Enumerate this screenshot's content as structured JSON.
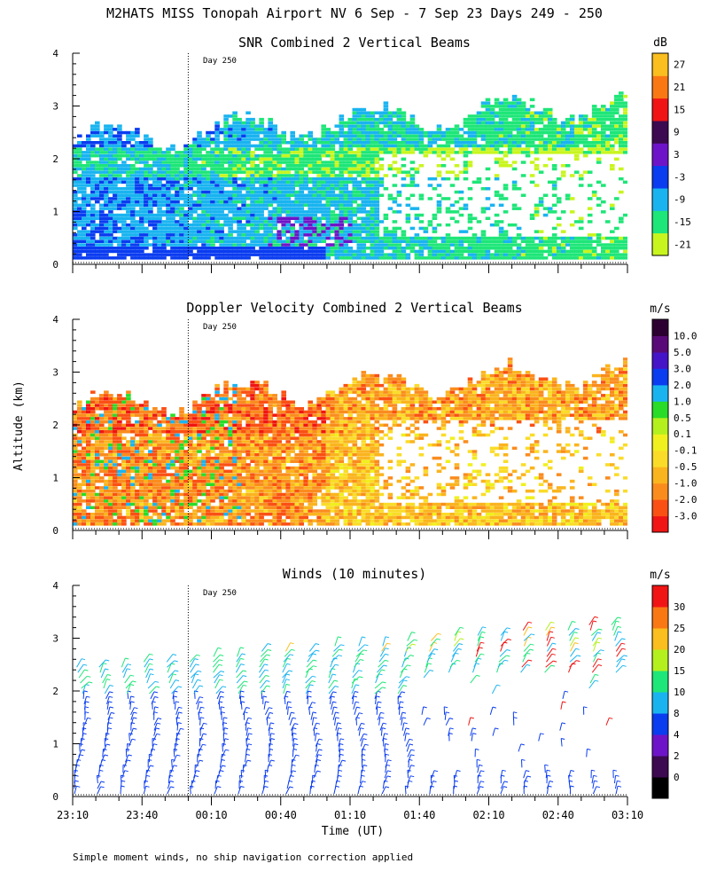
{
  "page": {
    "title": "M2HATS MISS Tonopah Airport NV   6 Sep -  7 Sep 23 Days 249 - 250",
    "y_axis_label": "Altitude (km)",
    "x_axis_label": "Time (UT)",
    "footnote": "Simple moment winds, no ship navigation correction applied",
    "day_marker_label": "Day 250"
  },
  "chart_data": [
    {
      "type": "heatmap",
      "title": "SNR Combined 2 Vertical Beams",
      "colorbar_unit": "dB",
      "colorbar_levels": [
        "-21",
        "-15",
        "-9",
        "-3",
        "3",
        "9",
        "15",
        "21",
        "27"
      ],
      "colorbar_colors": [
        "#c8f51e",
        "#1ee678",
        "#19b4f0",
        "#0a3cf0",
        "#6e14c8",
        "#3c0a50",
        "#f01414",
        "#fa7814",
        "#fabe1e"
      ],
      "x_ticks": [
        "23:10",
        "23:40",
        "00:10",
        "00:40",
        "01:10",
        "01:40",
        "02:10",
        "02:40",
        "03:10"
      ],
      "x_range_hours": [
        23.1667,
        27.1667
      ],
      "ylim": [
        0,
        4
      ],
      "y_ticks": [
        "0",
        "1",
        "2",
        "3",
        "4"
      ],
      "day_boundary_hour": 24.0
    },
    {
      "type": "heatmap",
      "title": "Doppler Velocity Combined 2 Vertical Beams",
      "colorbar_unit": "m/s",
      "colorbar_levels": [
        "-3.0",
        "-2.0",
        "-1.0",
        "-0.5",
        "-0.1",
        "0.1",
        "0.5",
        "1.0",
        "2.0",
        "3.0",
        "5.0",
        "10.0"
      ],
      "colorbar_colors": [
        "#f01414",
        "#fa5014",
        "#fa8c1e",
        "#fab41e",
        "#fadc28",
        "#f0f01e",
        "#b4f01e",
        "#28dc28",
        "#19b4f0",
        "#0a3cf0",
        "#4614c8",
        "#5a0a78",
        "#2d0032"
      ],
      "x_ticks": [
        "23:10",
        "23:40",
        "00:10",
        "00:40",
        "01:10",
        "01:40",
        "02:10",
        "02:40",
        "03:10"
      ],
      "x_range_hours": [
        23.1667,
        27.1667
      ],
      "ylim": [
        0,
        4
      ],
      "y_ticks": [
        "0",
        "1",
        "2",
        "3",
        "4"
      ],
      "day_boundary_hour": 24.0
    },
    {
      "type": "scatter",
      "title": "Winds (10 minutes)",
      "colorbar_unit": "m/s",
      "colorbar_levels": [
        "0",
        "2",
        "4",
        "8",
        "10",
        "15",
        "20",
        "25",
        "30"
      ],
      "colorbar_colors": [
        "#000000",
        "#3c0a50",
        "#6e14c8",
        "#0a3cf0",
        "#19b4f0",
        "#1ee678",
        "#b4f01e",
        "#fabe1e",
        "#fa7814",
        "#f01414"
      ],
      "x_ticks": [
        "23:10",
        "23:40",
        "00:10",
        "00:40",
        "01:10",
        "01:40",
        "02:10",
        "02:40",
        "03:10"
      ],
      "x_range_hours": [
        23.1667,
        27.1667
      ],
      "ylim": [
        0,
        4
      ],
      "y_ticks": [
        "0",
        "1",
        "2",
        "3",
        "4"
      ],
      "day_boundary_hour": 24.0,
      "profiles_interval_minutes": 10
    }
  ]
}
